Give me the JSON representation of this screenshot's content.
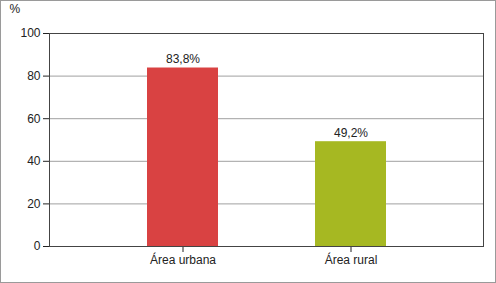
{
  "chart_data": {
    "type": "bar",
    "categories": [
      "Área urbana",
      "Área rural"
    ],
    "values": [
      83.8,
      49.2
    ],
    "value_labels": [
      "83,8%",
      "49,2%"
    ],
    "data_labels": true,
    "colors": [
      "#d94242",
      "#a6b822"
    ],
    "ylabel": "%",
    "ylim": [
      0,
      100
    ],
    "yticks": [
      0,
      20,
      40,
      60,
      80,
      100
    ],
    "grid": true
  }
}
